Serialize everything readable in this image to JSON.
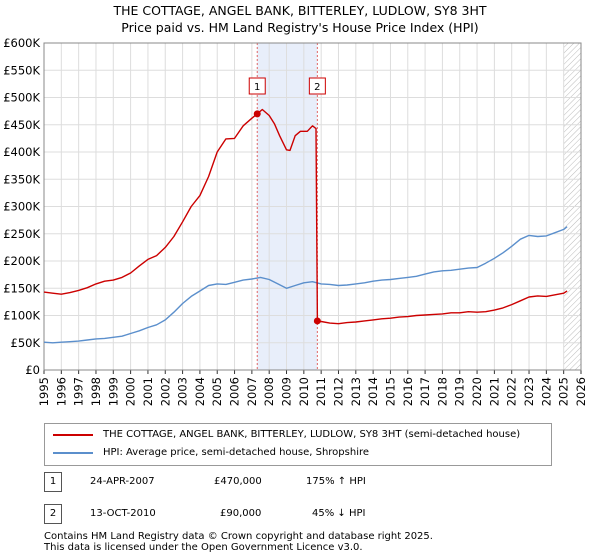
{
  "header": {
    "title": "THE COTTAGE, ANGEL BANK, BITTERLEY, LUDLOW, SY8 3HT",
    "subtitle": "Price paid vs. HM Land Registry's House Price Index (HPI)"
  },
  "colors": {
    "red": "#cc0000",
    "blue": "#5b8fcc",
    "shade": "#e8eefa",
    "grid": "#dddddd"
  },
  "chart_data": {
    "type": "line",
    "title": "THE COTTAGE, ANGEL BANK, BITTERLEY, LUDLOW, SY8 3HT",
    "xlim": [
      1995,
      2026
    ],
    "ylim": [
      0,
      600000
    ],
    "x_ticks": [
      "1995",
      "1996",
      "1997",
      "1998",
      "1999",
      "2000",
      "2001",
      "2002",
      "2003",
      "2004",
      "2005",
      "2006",
      "2007",
      "2008",
      "2009",
      "2010",
      "2011",
      "2012",
      "2013",
      "2014",
      "2015",
      "2016",
      "2017",
      "2018",
      "2019",
      "2020",
      "2021",
      "2022",
      "2023",
      "2024",
      "2025",
      "2026"
    ],
    "y_ticks": [
      "£0",
      "£50K",
      "£100K",
      "£150K",
      "£200K",
      "£250K",
      "£300K",
      "£350K",
      "£400K",
      "£450K",
      "£500K",
      "£550K",
      "£600K"
    ],
    "shaded_range": [
      2007.31,
      2010.78
    ],
    "hatch_from": 2025.0,
    "series": [
      {
        "name": "THE COTTAGE, ANGEL BANK, BITTERLEY, LUDLOW, SY8 3HT (semi-detached house)",
        "color": "#cc0000",
        "x": [
          1995.0,
          1995.5,
          1996.0,
          1996.5,
          1997.0,
          1997.5,
          1998.0,
          1998.5,
          1999.0,
          1999.5,
          2000.0,
          2000.5,
          2001.0,
          2001.5,
          2002.0,
          2002.5,
          2003.0,
          2003.5,
          2004.0,
          2004.5,
          2005.0,
          2005.5,
          2006.0,
          2006.5,
          2007.0,
          2007.31,
          2007.6,
          2008.0,
          2008.3,
          2008.6,
          2009.0,
          2009.2,
          2009.5,
          2009.8,
          2010.2,
          2010.5,
          2010.7,
          2010.78,
          2011.0,
          2011.5,
          2012.0,
          2012.5,
          2013.0,
          2013.5,
          2014.0,
          2014.5,
          2015.0,
          2015.5,
          2016.0,
          2016.5,
          2017.0,
          2017.5,
          2018.0,
          2018.5,
          2019.0,
          2019.5,
          2020.0,
          2020.5,
          2021.0,
          2021.5,
          2022.0,
          2022.5,
          2023.0,
          2023.5,
          2024.0,
          2024.5,
          2025.0,
          2025.2
        ],
        "y": [
          143000,
          141000,
          139000,
          142000,
          146000,
          151000,
          158000,
          163000,
          165000,
          170000,
          178000,
          191000,
          203000,
          210000,
          225000,
          245000,
          272000,
          300000,
          320000,
          355000,
          400000,
          424000,
          425000,
          448000,
          462000,
          470000,
          478000,
          467000,
          452000,
          430000,
          404000,
          403000,
          430000,
          438000,
          438000,
          448000,
          443000,
          90000,
          89000,
          86000,
          85000,
          87000,
          88000,
          90000,
          92000,
          94000,
          95000,
          97000,
          98000,
          100000,
          101000,
          102000,
          103000,
          105000,
          105000,
          107000,
          106000,
          107000,
          110000,
          114000,
          120000,
          127000,
          134000,
          136000,
          135000,
          138000,
          141000,
          145000
        ]
      },
      {
        "name": "HPI: Average price, semi-detached house, Shropshire",
        "color": "#5b8fcc",
        "x": [
          1995.0,
          1995.5,
          1996.0,
          1996.5,
          1997.0,
          1997.5,
          1998.0,
          1998.5,
          1999.0,
          1999.5,
          2000.0,
          2000.5,
          2001.0,
          2001.5,
          2002.0,
          2002.5,
          2003.0,
          2003.5,
          2004.0,
          2004.5,
          2005.0,
          2005.5,
          2006.0,
          2006.5,
          2007.0,
          2007.5,
          2008.0,
          2008.5,
          2009.0,
          2009.5,
          2010.0,
          2010.5,
          2011.0,
          2011.5,
          2012.0,
          2012.5,
          2013.0,
          2013.5,
          2014.0,
          2014.5,
          2015.0,
          2015.5,
          2016.0,
          2016.5,
          2017.0,
          2017.5,
          2018.0,
          2018.5,
          2019.0,
          2019.5,
          2020.0,
          2020.5,
          2021.0,
          2021.5,
          2022.0,
          2022.5,
          2023.0,
          2023.5,
          2024.0,
          2024.5,
          2025.0,
          2025.2
        ],
        "y": [
          51000,
          50000,
          51000,
          52000,
          53000,
          55000,
          57000,
          58000,
          60000,
          62000,
          67000,
          72000,
          78000,
          83000,
          92000,
          106000,
          122000,
          135000,
          145000,
          155000,
          158000,
          157000,
          161000,
          165000,
          167000,
          170000,
          166000,
          158000,
          150000,
          155000,
          160000,
          162000,
          158000,
          157000,
          155000,
          156000,
          158000,
          160000,
          163000,
          165000,
          166000,
          168000,
          170000,
          172000,
          176000,
          180000,
          182000,
          183000,
          185000,
          187000,
          188000,
          196000,
          205000,
          215000,
          227000,
          240000,
          247000,
          245000,
          246000,
          252000,
          258000,
          263000
        ]
      }
    ],
    "transactions": [
      {
        "label": "1",
        "x": 2007.31,
        "y": 470000
      },
      {
        "label": "2",
        "x": 2010.78,
        "y": 90000
      }
    ]
  },
  "legend": {
    "items": [
      "THE COTTAGE, ANGEL BANK, BITTERLEY, LUDLOW, SY8 3HT (semi-detached house)",
      "HPI: Average price, semi-detached house, Shropshire"
    ]
  },
  "table": {
    "rows": [
      {
        "num": "1",
        "date": "24-APR-2007",
        "price": "£470,000",
        "hpi": "175% ↑ HPI"
      },
      {
        "num": "2",
        "date": "13-OCT-2010",
        "price": "£90,000",
        "hpi": "45% ↓ HPI"
      }
    ]
  },
  "footer": {
    "line1": "Contains HM Land Registry data © Crown copyright and database right 2025.",
    "line2": "This data is licensed under the Open Government Licence v3.0."
  }
}
